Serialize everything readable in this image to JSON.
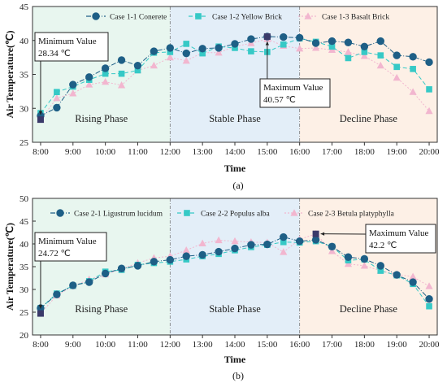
{
  "chart_data": [
    {
      "type": "line",
      "panel_label": "(a)",
      "xlabel": "Time",
      "ylabel": "Air Temperature(℃)",
      "ylim": [
        25,
        45
      ],
      "yticks": [
        25,
        30,
        35,
        40,
        45
      ],
      "xlim": [
        7.75,
        20.25
      ],
      "xticks": [
        "8:00",
        "9:00",
        "10:00",
        "11:00",
        "12:00",
        "13:00",
        "14:00",
        "15:00",
        "16:00",
        "17:00",
        "18:00",
        "19:00",
        "20:00"
      ],
      "grid": false,
      "legend_position": "top",
      "phases": [
        {
          "label": "Rising Phase",
          "from": 7.75,
          "to": 12,
          "color": "#e8f6ef"
        },
        {
          "label": "Stable Phase",
          "from": 12,
          "to": 16,
          "color": "#e3eef8"
        },
        {
          "label": "Decline Phase",
          "from": 16,
          "to": 20.25,
          "color": "#fdf0e6"
        }
      ],
      "x": [
        8,
        8.5,
        9,
        9.5,
        10,
        10.5,
        11,
        11.5,
        12,
        12.5,
        13,
        13.5,
        14,
        14.5,
        15,
        15.5,
        16,
        16.5,
        17,
        17.5,
        18,
        18.5,
        19,
        19.5,
        20
      ],
      "series": [
        {
          "name": "Case 1-1 Conerete",
          "marker": "circle",
          "color": "#1e5f86",
          "values": [
            28.9,
            30.1,
            33.5,
            34.6,
            35.9,
            37.1,
            36.3,
            38.4,
            38.9,
            38.1,
            38.8,
            38.9,
            39.5,
            40.2,
            40.57,
            40.5,
            40.4,
            39.6,
            39.9,
            39.7,
            39.1,
            39.9,
            37.8,
            37.6,
            36.8
          ]
        },
        {
          "name": "Case 1-2 Yellow Brick",
          "marker": "square",
          "color": "#36c9c6",
          "values": [
            29.3,
            32.4,
            33.2,
            34.2,
            35.1,
            35.1,
            35.6,
            38.2,
            38.3,
            39.5,
            38.1,
            39.1,
            38.9,
            38.4,
            38.3,
            39.4,
            40.3,
            39.8,
            39.1,
            37.4,
            38.3,
            37.8,
            36.1,
            35.8,
            32.8
          ]
        },
        {
          "name": "Case 1-3 Basalt Brick",
          "marker": "triangle",
          "color": "#f2b6cf",
          "values": [
            28.34,
            31.5,
            32.2,
            33.5,
            33.9,
            33.4,
            35.6,
            36.3,
            37.5,
            37.0,
            38.2,
            38.2,
            39.1,
            39.6,
            40.2,
            39.2,
            38.8,
            38.9,
            38.6,
            38.3,
            37.7,
            36.3,
            34.5,
            32.4,
            29.6
          ]
        }
      ],
      "annotations": [
        {
          "text_lines": [
            "Minimum Value",
            "28.34 ℃"
          ],
          "x": 8,
          "y": 28.34
        },
        {
          "text_lines": [
            "Maximum Value",
            "40.57 ℃"
          ],
          "x": 15,
          "y": 40.57
        }
      ]
    },
    {
      "type": "line",
      "panel_label": "(b)",
      "xlabel": "Time",
      "ylabel": "Air Temperature(℃)",
      "ylim": [
        20,
        50
      ],
      "yticks": [
        20,
        25,
        30,
        35,
        40,
        45,
        50
      ],
      "xlim": [
        7.75,
        20.25
      ],
      "xticks": [
        "8:00",
        "9:00",
        "10:00",
        "11:00",
        "12:00",
        "13:00",
        "14:00",
        "15:00",
        "16:00",
        "17:00",
        "18:00",
        "19:00",
        "20:00"
      ],
      "grid": false,
      "legend_position": "top",
      "phases": [
        {
          "label": "Rising Phase",
          "from": 7.75,
          "to": 12,
          "color": "#e8f6ef"
        },
        {
          "label": "Stable Phase",
          "from": 12,
          "to": 16,
          "color": "#e3eef8"
        },
        {
          "label": "Decline Phase",
          "from": 16,
          "to": 20.25,
          "color": "#fdf0e6"
        }
      ],
      "x": [
        8,
        8.5,
        9,
        9.5,
        10,
        10.5,
        11,
        11.5,
        12,
        12.5,
        13,
        13.5,
        14,
        14.5,
        15,
        15.5,
        16,
        16.5,
        17,
        17.5,
        18,
        18.5,
        19,
        19.5,
        20
      ],
      "series": [
        {
          "name": "Case 2-1 Ligustrum lucidum",
          "marker": "circle",
          "color": "#1e5f86",
          "values": [
            25.9,
            28.9,
            30.9,
            31.6,
            33.5,
            34.6,
            35.2,
            36.1,
            36.5,
            37.3,
            37.6,
            38.3,
            39.0,
            39.8,
            39.9,
            41.5,
            40.6,
            40.9,
            39.4,
            37.1,
            36.7,
            35.2,
            33.2,
            31.6,
            27.9
          ]
        },
        {
          "name": "Case 2-2 Populus alba",
          "marker": "square",
          "color": "#36c9c6",
          "values": [
            25.9,
            29.1,
            30.8,
            31.8,
            33.9,
            34.3,
            35.4,
            35.8,
            36.1,
            36.6,
            37.3,
            37.8,
            38.6,
            39.3,
            39.8,
            40.4,
            40.3,
            40.6,
            39.4,
            36.4,
            36.6,
            34.1,
            33.1,
            31.2,
            26.3
          ]
        },
        {
          "name": "Case 2-3 Betula platyphylla",
          "marker": "triangle",
          "color": "#f2b6cf",
          "values": [
            24.72,
            28.7,
            30.7,
            32.2,
            33.3,
            34.5,
            35.8,
            36.9,
            37.3,
            38.6,
            40.1,
            40.8,
            40.6,
            40.4,
            40.3,
            38.2,
            41.0,
            42.2,
            38.4,
            35.6,
            35.2,
            34.1,
            33.3,
            32.8,
            30.7
          ]
        }
      ],
      "annotations": [
        {
          "text_lines": [
            "Minimum Value",
            "24.72 ℃"
          ],
          "x": 8,
          "y": 24.72
        },
        {
          "text_lines": [
            "Maximum Value",
            "42.2 ℃"
          ],
          "x": 16.5,
          "y": 42.2
        }
      ]
    }
  ]
}
